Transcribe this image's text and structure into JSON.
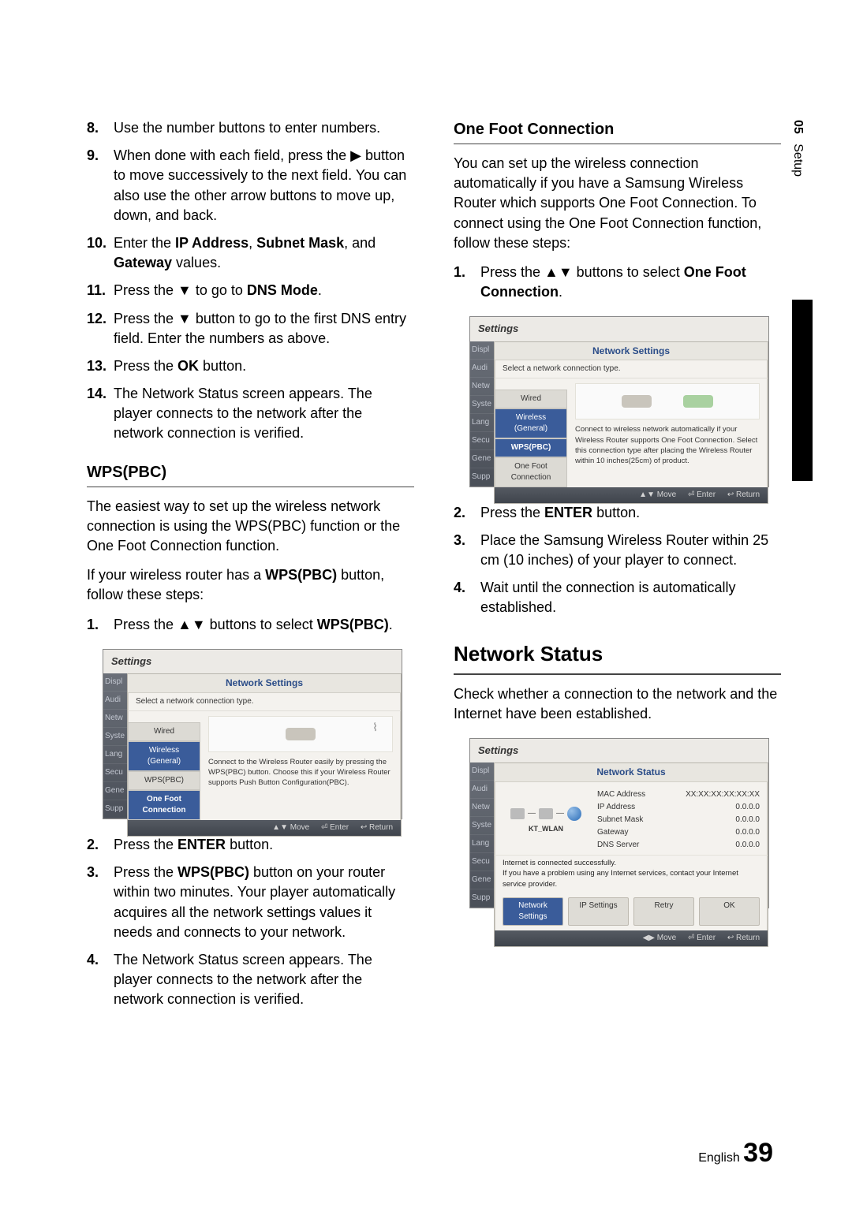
{
  "sideTab": {
    "chapter": "05",
    "label": "Setup"
  },
  "pageFooter": {
    "lang": "English",
    "num": "39"
  },
  "left": {
    "list1": [
      {
        "n": "8.",
        "t_pre": "Use the number buttons to enter numbers."
      },
      {
        "n": "9.",
        "t_pre": "When done with each field, press the ▶ button to move successively to the next field. You can also use the other arrow buttons to move up, down, and back."
      },
      {
        "n": "10.",
        "t_pre": "Enter the ",
        "b1": "IP Address",
        "t_mid1": ", ",
        "b2": "Subnet Mask",
        "t_mid2": ", and ",
        "b3": "Gateway",
        "t_post": " values."
      },
      {
        "n": "11.",
        "t_pre": "Press the ▼ to go to ",
        "b1": "DNS Mode",
        "t_post": "."
      },
      {
        "n": "12.",
        "t_pre": "Press the ▼ button to go to the first DNS entry field. Enter the numbers as above."
      },
      {
        "n": "13.",
        "t_pre": "Press the ",
        "b1": "OK",
        "t_post": " button."
      },
      {
        "n": "14.",
        "t_pre": "The Network Status screen appears. The player connects to the network after the network connection is verified."
      }
    ],
    "wps": {
      "title": "WPS(PBC)",
      "p1": "The easiest way to set up the wireless network connection is using the WPS(PBC) function or the One Foot Connection function.",
      "p2_pre": "If your wireless router has a ",
      "p2_b": "WPS(PBC)",
      "p2_post": " button, follow these steps:",
      "list": [
        {
          "n": "1.",
          "t_pre": "Press the ▲▼ buttons to select ",
          "b1": "WPS(PBC)",
          "t_post": "."
        },
        {
          "n": "2.",
          "t_pre": "Press the ",
          "b1": "ENTER",
          "t_post": " button."
        },
        {
          "n": "3.",
          "t_pre": "Press the ",
          "b1": "WPS(PBC)",
          "t_post": " button on your router within two minutes. Your player automatically acquires all the network settings values it needs and connects to your network."
        },
        {
          "n": "4.",
          "t_pre": "The Network Status screen appears. The player connects to the network after the network connection is verified."
        }
      ]
    }
  },
  "right": {
    "ofc": {
      "title": "One Foot Connection",
      "p1": "You can set up the wireless connection automatically if you have a Samsung Wireless Router which supports One Foot Connection. To connect using the One Foot Connection function, follow these steps:",
      "list": [
        {
          "n": "1.",
          "t_pre": "Press the ▲▼ buttons to select ",
          "b1": "One Foot Connection",
          "t_post": "."
        },
        {
          "n": "2.",
          "t_pre": "Press the ",
          "b1": "ENTER",
          "t_post": " button."
        },
        {
          "n": "3.",
          "t_pre": "Place the Samsung Wireless Router within 25 cm (10 inches) of your player to connect."
        },
        {
          "n": "4.",
          "t_pre": "Wait until the connection is automatically established."
        }
      ]
    },
    "netstatus": {
      "title": "Network Status",
      "p1": "Check whether a connection to the network and the Internet have been established."
    }
  },
  "dialog": {
    "settings_title": "Settings",
    "sidebar": [
      "Displ",
      "Audi",
      "Netw",
      "Syste",
      "Lang",
      "Secu",
      "Gene",
      "Supp"
    ],
    "net_title": "Network Settings",
    "net_subtitle": "Select a network connection type.",
    "options": [
      "Wired",
      "Wireless (General)",
      "WPS(PBC)",
      "One Foot Connection"
    ],
    "wps_desc": "Connect to the Wireless Router easily by pressing the WPS(PBC) button. Choose this if your Wireless Router supports Push Button Configuration(PBC).",
    "ofc_desc": "Connect to wireless network automatically if your Wireless Router supports One Foot Connection. Select this connection type after placing the Wireless Router within 10 inches(25cm) of product.",
    "footer_move": "▲▼ Move",
    "footer_enter": "⏎ Enter",
    "footer_return": "↩ Return",
    "footer_lr": "◀▶ Move",
    "status_title": "Network Status",
    "status_net": "KT_WLAN",
    "status_kv": [
      {
        "k": "MAC Address",
        "v": "XX:XX:XX:XX:XX:XX"
      },
      {
        "k": "IP Address",
        "v": "0.0.0.0"
      },
      {
        "k": "Subnet Mask",
        "v": "0.0.0.0"
      },
      {
        "k": "Gateway",
        "v": "0.0.0.0"
      },
      {
        "k": "DNS Server",
        "v": "0.0.0.0"
      }
    ],
    "status_msg1": "Internet is connected successfully.",
    "status_msg2": "If you have a problem using any Internet services, contact your Internet service provider.",
    "status_btns": [
      "Network Settings",
      "IP Settings",
      "Retry",
      "OK"
    ]
  }
}
